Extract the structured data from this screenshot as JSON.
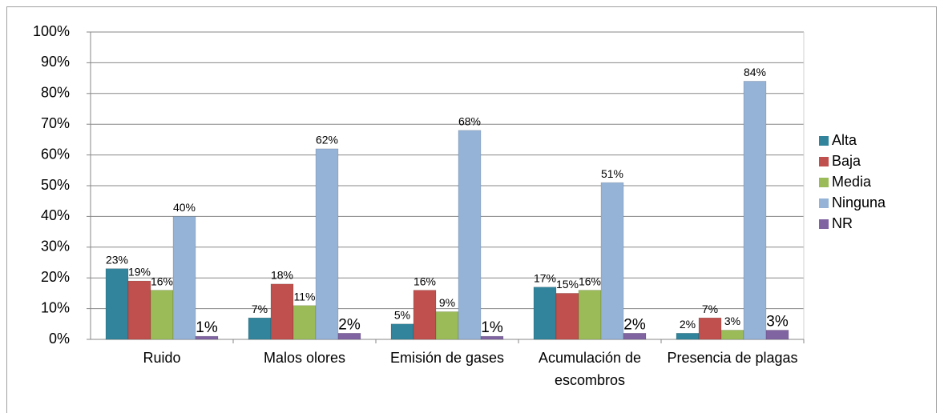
{
  "chart_data": {
    "type": "bar",
    "categories": [
      "Ruido",
      "Malos olores",
      "Emisión de gases",
      "Acumulación de escombros",
      "Presencia de plagas"
    ],
    "series": [
      {
        "name": "Alta",
        "color": "#31849b",
        "values": [
          23,
          7,
          5,
          17,
          2
        ],
        "value_labels": [
          "23%",
          "7%",
          "5%",
          "17%",
          "2%"
        ]
      },
      {
        "name": "Baja",
        "color": "#c0504d",
        "values": [
          19,
          18,
          16,
          15,
          7
        ],
        "value_labels": [
          "19%",
          "18%",
          "16%",
          "15%",
          "7%"
        ]
      },
      {
        "name": "Media",
        "color": "#9bbb59",
        "values": [
          16,
          11,
          9,
          16,
          3
        ],
        "value_labels": [
          "16%",
          "11%",
          "9%",
          "16%",
          "3%"
        ]
      },
      {
        "name": "Ninguna",
        "color": "#95b3d7",
        "values": [
          40,
          62,
          68,
          51,
          84
        ],
        "value_labels": [
          "40%",
          "62%",
          "68%",
          "51%",
          "84%"
        ]
      },
      {
        "name": "NR",
        "color": "#8064a2",
        "values": [
          1,
          2,
          1,
          2,
          3
        ],
        "value_labels": [
          "1%",
          "2%",
          "1%",
          "2%",
          "3%"
        ]
      }
    ],
    "ylim": [
      0,
      100
    ],
    "yticks": [
      {
        "value": 0,
        "label": "0%"
      },
      {
        "value": 10,
        "label": "10%"
      },
      {
        "value": 20,
        "label": "20%"
      },
      {
        "value": 30,
        "label": "30%"
      },
      {
        "value": 40,
        "label": "40%"
      },
      {
        "value": 50,
        "label": "50%"
      },
      {
        "value": 60,
        "label": "60%"
      },
      {
        "value": 70,
        "label": "70%"
      },
      {
        "value": 80,
        "label": "80%"
      },
      {
        "value": 90,
        "label": "90%"
      },
      {
        "value": 100,
        "label": "100%"
      }
    ],
    "grid": true,
    "legend": "right"
  }
}
